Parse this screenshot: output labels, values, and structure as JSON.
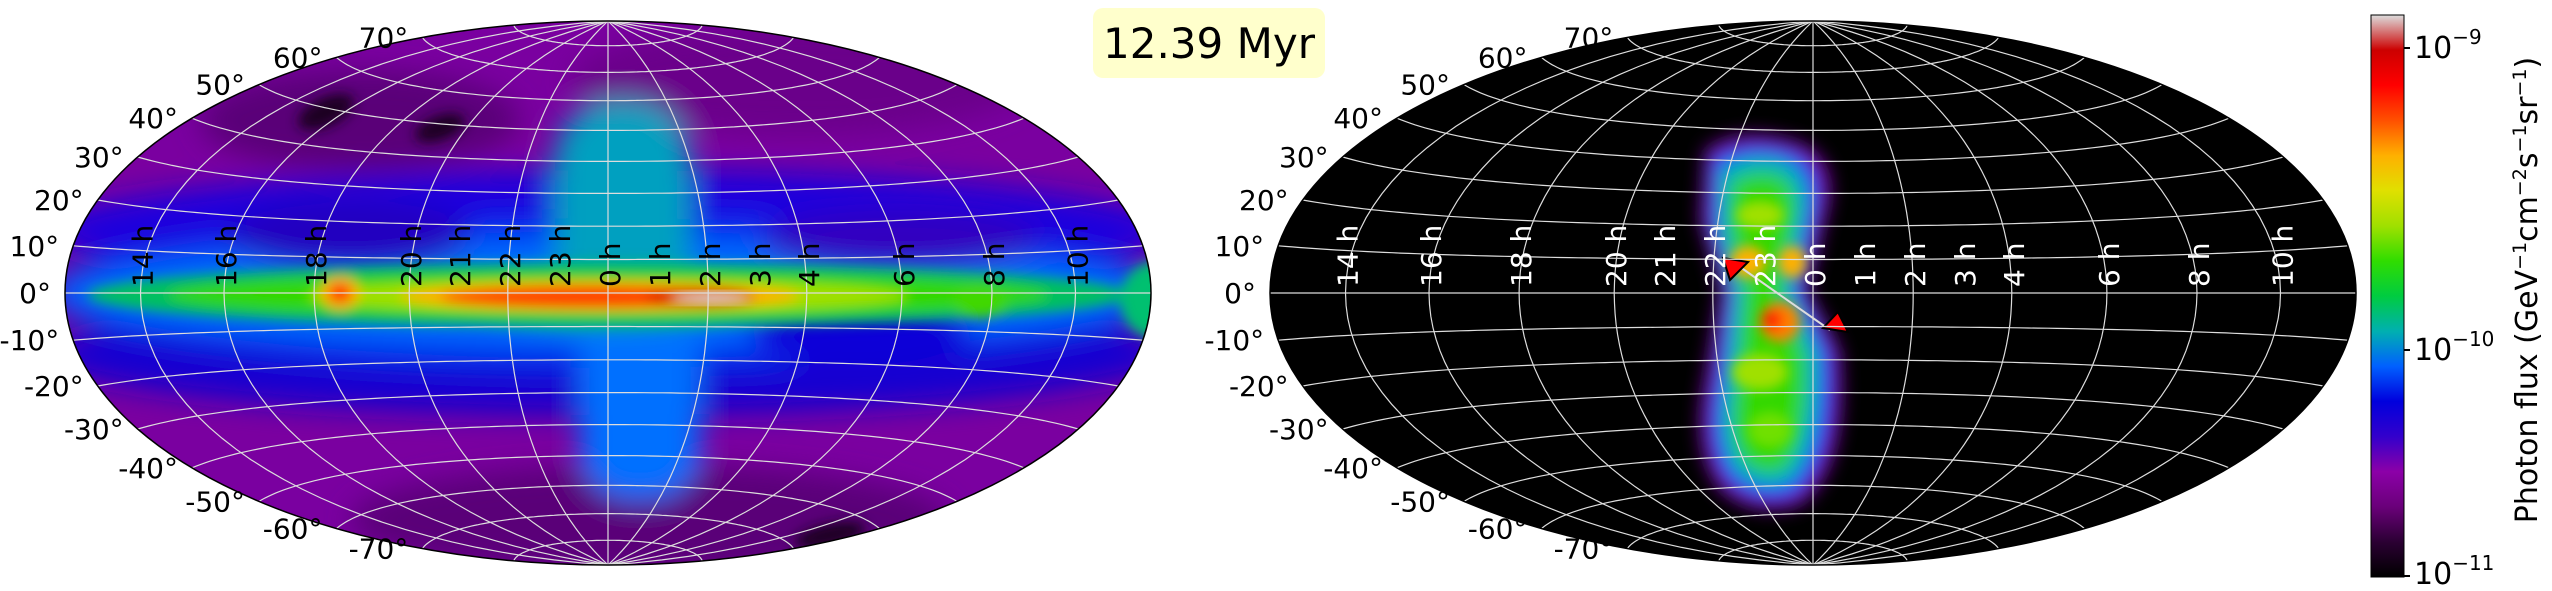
{
  "time_badge": "12.39 Myr",
  "colorbar": {
    "label_html": "Photon flux (GeV<sup>−1</sup>cm<sup>−2</sup>s<sup>−1</sup>sr<sup>−1</sup>)",
    "ticks": [
      "10−9",
      "10−10",
      "10−11"
    ],
    "colormap": [
      "#000000",
      "#2b0033",
      "#6a007a",
      "#8c00a8",
      "#3300cc",
      "#0000dd",
      "#0060ff",
      "#00b0b0",
      "#00cc40",
      "#30dd00",
      "#a0e000",
      "#e0e000",
      "#ffb000",
      "#ff5000",
      "#ff0000",
      "#cc0000",
      "#dddddd"
    ]
  },
  "chart_data": [
    {
      "type": "heatmap",
      "projection": "hammer-aitoff",
      "lat_labels": [
        "70°",
        "60°",
        "50°",
        "40°",
        "30°",
        "20°",
        "10°",
        "0°",
        "-10°",
        "-20°",
        "-30°",
        "-40°",
        "-50°",
        "-60°",
        "-70°"
      ],
      "lon_labels": [
        "10 h",
        "8 h",
        "6 h",
        "4 h",
        "3 h",
        "2 h",
        "1 h",
        "0 h",
        "23 h",
        "22 h",
        "21 h",
        "20 h",
        "18 h",
        "16 h",
        "14 h"
      ],
      "lon_hours": [
        10,
        8,
        6,
        4,
        3,
        2,
        1,
        0,
        23,
        22,
        21,
        20,
        18,
        16,
        14
      ],
      "grid": true,
      "colorbar_range": [
        "1e-11",
        "1e-9"
      ]
    },
    {
      "type": "heatmap",
      "projection": "hammer-aitoff",
      "lat_labels": [
        "70°",
        "60°",
        "50°",
        "40°",
        "30°",
        "20°",
        "10°",
        "0°",
        "-10°",
        "-20°",
        "-30°",
        "-40°",
        "-50°",
        "-60°",
        "-70°"
      ],
      "lon_labels": [
        "10 h",
        "8 h",
        "6 h",
        "4 h",
        "3 h",
        "2 h",
        "1 h",
        "0 h",
        "23 h",
        "22 h",
        "21 h",
        "20 h",
        "18 h",
        "16 h",
        "14 h"
      ],
      "lon_hours": [
        10,
        8,
        6,
        4,
        3,
        2,
        1,
        0,
        23,
        22,
        21,
        20,
        18,
        16,
        14
      ],
      "grid": true,
      "background": "#000000",
      "colorbar_range": [
        "1e-11",
        "1e-9"
      ]
    }
  ]
}
